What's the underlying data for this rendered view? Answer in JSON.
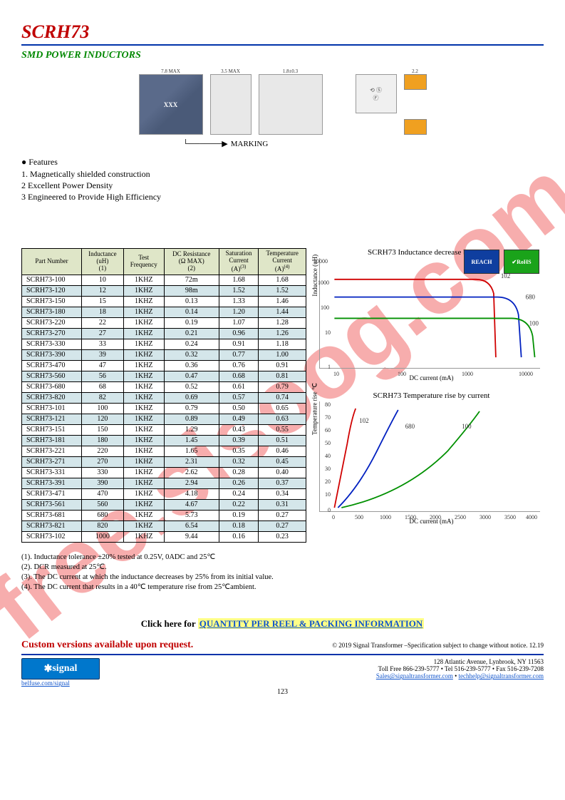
{
  "watermark": "free.sisoog.com",
  "header": {
    "title": "SCRH73",
    "subtitle": "SMD POWER INDUCTORS"
  },
  "drawings": {
    "top_dim": "7.8 MAX",
    "side_dim": "3.5 MAX",
    "foot_dim": "1.8±0.3",
    "pad_dim": "2.2",
    "xxx": "XXX",
    "marking_label": "MARKING"
  },
  "features": {
    "heading": "● Features",
    "items": [
      "1.  Magnetically shielded construction",
      "2   Excellent Power Density",
      "3   Engineered to Provide High Efficiency"
    ]
  },
  "badges": {
    "reach": "REACH",
    "rohs": "RoHS"
  },
  "table": {
    "headers": [
      "Part Number",
      "Inductance\n(uH)\n(1)",
      "Test\nFrequency",
      "DC Resistance\n(Ω  MAX)\n(2)",
      "Saturation\nCurrent\n(A)",
      "Temperature\nCurrent\n(A)"
    ],
    "header_sup": [
      "",
      "",
      "",
      "",
      "(3)",
      "(4)"
    ],
    "rows": [
      [
        "SCRH73-100",
        "10",
        "1KHZ",
        "72m",
        "1.68",
        "1.68"
      ],
      [
        "SCRH73-120",
        "12",
        "1KHZ",
        "98m",
        "1.52",
        "1.52"
      ],
      [
        "SCRH73-150",
        "15",
        "1KHZ",
        "0.13",
        "1.33",
        "1.46"
      ],
      [
        "SCRH73-180",
        "18",
        "1KHZ",
        "0.14",
        "1.20",
        "1.44"
      ],
      [
        "SCRH73-220",
        "22",
        "1KHZ",
        "0.19",
        "1.07",
        "1.28"
      ],
      [
        "SCRH73-270",
        "27",
        "1KHZ",
        "0.21",
        "0.96",
        "1.26"
      ],
      [
        "SCRH73-330",
        "33",
        "1KHZ",
        "0.24",
        "0.91",
        "1.18"
      ],
      [
        "SCRH73-390",
        "39",
        "1KHZ",
        "0.32",
        "0.77",
        "1.00"
      ],
      [
        "SCRH73-470",
        "47",
        "1KHZ",
        "0.36",
        "0.76",
        "0.91"
      ],
      [
        "SCRH73-560",
        "56",
        "1KHZ",
        "0.47",
        "0.68",
        "0.81"
      ],
      [
        "SCRH73-680",
        "68",
        "1KHZ",
        "0.52",
        "0.61",
        "0.79"
      ],
      [
        "SCRH73-820",
        "82",
        "1KHZ",
        "0.69",
        "0.57",
        "0.74"
      ],
      [
        "SCRH73-101",
        "100",
        "1KHZ",
        "0.79",
        "0.50",
        "0.65"
      ],
      [
        "SCRH73-121",
        "120",
        "1KHZ",
        "0.89",
        "0.49",
        "0.63"
      ],
      [
        "SCRH73-151",
        "150",
        "1KHZ",
        "1.29",
        "0.43",
        "0.55"
      ],
      [
        "SCRH73-181",
        "180",
        "1KHZ",
        "1.45",
        "0.39",
        "0.51"
      ],
      [
        "SCRH73-221",
        "220",
        "1KHZ",
        "1.65",
        "0.35",
        "0.46"
      ],
      [
        "SCRH73-271",
        "270",
        "1KHZ",
        "2.31",
        "0.32",
        "0.45"
      ],
      [
        "SCRH73-331",
        "330",
        "1KHZ",
        "2.62",
        "0.28",
        "0.40"
      ],
      [
        "SCRH73-391",
        "390",
        "1KHZ",
        "2.94",
        "0.26",
        "0.37"
      ],
      [
        "SCRH73-471",
        "470",
        "1KHZ",
        "4.18",
        "0.24",
        "0.34"
      ],
      [
        "SCRH73-561",
        "560",
        "1KHZ",
        "4.67",
        "0.22",
        "0.31"
      ],
      [
        "SCRH73-681",
        "680",
        "1KHZ",
        "5.73",
        "0.19",
        "0.27"
      ],
      [
        "SCRH73-821",
        "820",
        "1KHZ",
        "6.54",
        "0.18",
        "0.27"
      ],
      [
        "SCRH73-102",
        "1000",
        "1KHZ",
        "9.44",
        "0.16",
        "0.23"
      ]
    ]
  },
  "chart1": {
    "title": "SCRH73 Inductance decrease by current",
    "ylabel": "Inductance (uH)",
    "xlabel": "DC current (mA)",
    "yticks": [
      "1",
      "10",
      "100",
      "1000",
      "10000"
    ],
    "xticks": [
      "10",
      "100",
      "1000",
      "10000"
    ],
    "series_labels": [
      "102",
      "680",
      "100"
    ],
    "colors": [
      "#d00000",
      "#0020c0",
      "#009000"
    ]
  },
  "chart2": {
    "title": "SCRH73 Temperature rise by current",
    "ylabel": "Temperature rise ℃",
    "xlabel": "DC current (mA)",
    "yticks": [
      "0",
      "10",
      "20",
      "30",
      "40",
      "50",
      "60",
      "70",
      "80"
    ],
    "xticks": [
      "0",
      "500",
      "1000",
      "1500",
      "2000",
      "2500",
      "3000",
      "3500",
      "4000"
    ],
    "series_labels": [
      "102",
      "680",
      "100"
    ],
    "colors": [
      "#d00000",
      "#0020c0",
      "#009000"
    ]
  },
  "notes": [
    "(1). Inductance tolerance  ±20% tested at 0.25V, 0ADC and 25℃",
    "(2). DCR measured at 25℃.",
    "(3). The DC current at which the inductance decreases by 25% from its initial value.",
    "(4). The DC current that results in a 40℃  temperature rise from 25℃ambient."
  ],
  "link": {
    "prefix": "Click here for ",
    "text": "QUANTITY PER REEL & PACKING INFORMATION"
  },
  "custom": "Custom versions available upon request.",
  "copyright": "© 2019 Signal Transformer –Specification subject to change without notice. 12.19",
  "footer": {
    "logo": "signal",
    "site": "belfuse.com/signal",
    "addr": "128 Atlantic Avenue, Lynbrook, NY 11563",
    "phones": "Toll Free 866-239-5777 • Tel 516-239-5777 • Fax 516-239-7208",
    "email1": "Sales@signaltransformer.com",
    "email2": "techhelp@signaltransformer.com",
    "page": "123"
  }
}
